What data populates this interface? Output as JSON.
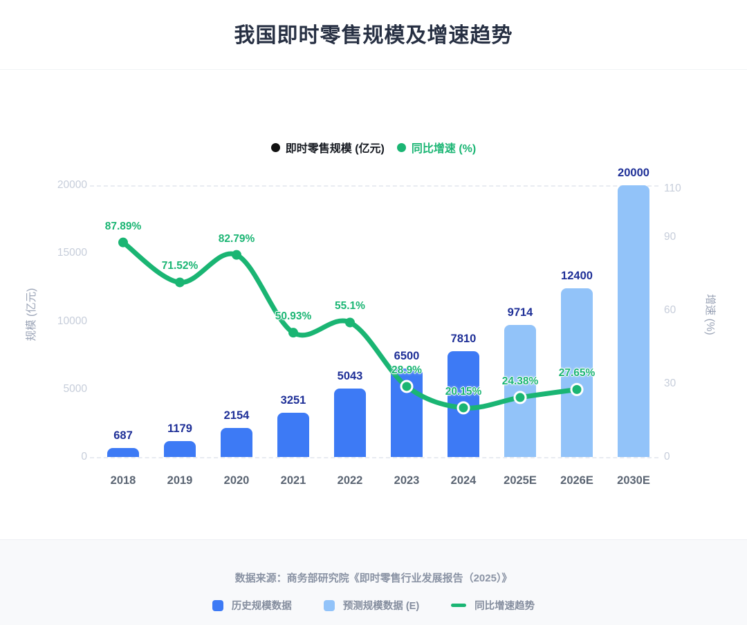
{
  "page": {
    "title": "我国即时零售规模及增速趋势"
  },
  "legend": {
    "scale": {
      "label": "即时零售规模 (亿元)",
      "color": "#111111"
    },
    "growth": {
      "label": "同比增速 (%)",
      "color": "#1ab573"
    }
  },
  "chart_data": {
    "type": "bar",
    "title": "我国即时零售规模及增速趋势",
    "categories": [
      "2018",
      "2019",
      "2020",
      "2021",
      "2022",
      "2023",
      "2024",
      "2025E",
      "2026E",
      "2030E"
    ],
    "series": [
      {
        "name": "即时零售规模 (亿元)",
        "type": "bar",
        "values": [
          687,
          1179,
          2154,
          3251,
          5043,
          6500,
          7810,
          9714,
          12400,
          20000
        ],
        "value_labels": [
          "687",
          "1179",
          "2154",
          "3251",
          "5043",
          "6500",
          "7810",
          "9714",
          "12400",
          "20000"
        ],
        "segments": [
          "historical",
          "historical",
          "historical",
          "historical",
          "historical",
          "historical",
          "historical",
          "forecast",
          "forecast",
          "forecast"
        ]
      },
      {
        "name": "同比增速 (%)",
        "type": "line",
        "values": [
          87.89,
          71.52,
          82.79,
          50.93,
          55.1,
          28.9,
          20.15,
          24.38,
          27.65,
          null
        ],
        "value_labels": [
          "87.89%",
          "71.52%",
          "82.79%",
          "50.93%",
          "55.1%",
          "28.9%",
          "20.15%",
          "24.38%",
          "27.65%"
        ]
      }
    ],
    "left_axis": {
      "title": "规模 (亿元)",
      "ticks": [
        0,
        5000,
        10000,
        15000,
        20000
      ],
      "range": [
        0,
        20000
      ]
    },
    "right_axis": {
      "title": "增速 (%)",
      "ticks": [
        0,
        30,
        60,
        90,
        110
      ],
      "range": [
        0,
        111.3
      ]
    },
    "grid": {
      "top_line": "dashed",
      "bottom_line": "dashed",
      "middle_lines": "none"
    },
    "legend_position": "top-center",
    "colors": {
      "historical_bar": "#3d7af5",
      "forecast_bar": "#92c3f9",
      "growth_line": "#1ab573",
      "bar_value_label": "#1e2f97",
      "marker_ring": "#ffffff"
    }
  },
  "footer": {
    "source": "数据来源：商务部研究院《即时零售行业发展报告（2025）》",
    "legend": [
      {
        "label": "历史规模数据",
        "swatch": "#3d7af5",
        "type": "square"
      },
      {
        "label": "预测规模数据 (E)",
        "swatch": "#92c3f9",
        "type": "square"
      },
      {
        "label": "同比增速趋势",
        "swatch": "#1ab573",
        "type": "line"
      }
    ]
  }
}
